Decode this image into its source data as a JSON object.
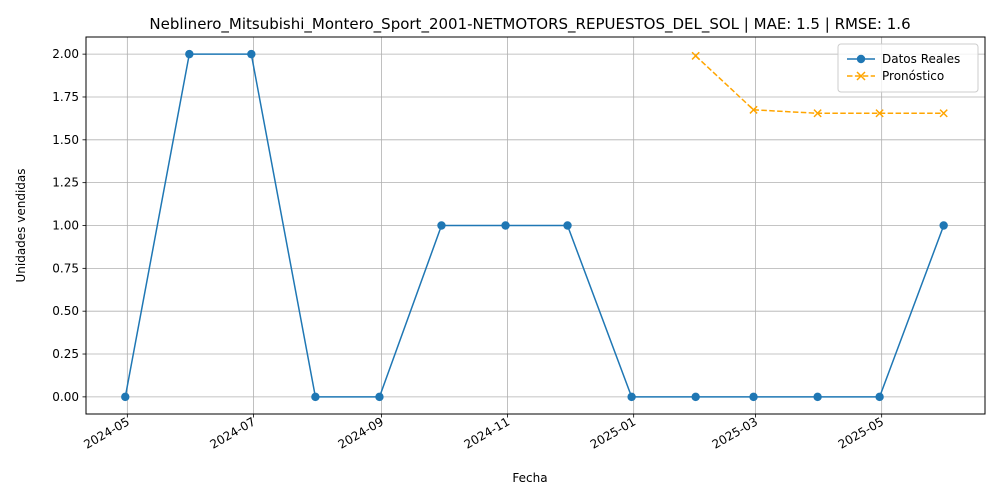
{
  "chart_data": {
    "type": "line",
    "title": "Neblinero_Mitsubishi_Montero_Sport_2001-NETMOTORS_REPUESTOS_DEL_SOL | MAE: 1.5 | RMSE: 1.6",
    "xlabel": "Fecha",
    "ylabel": "Unidades vendidas",
    "xlim": [
      "2024-04-11",
      "2025-06-20"
    ],
    "ylim": [
      -0.1,
      2.1
    ],
    "x_ticks": [
      "2024-05",
      "2024-07",
      "2024-09",
      "2024-11",
      "2025-01",
      "2025-03",
      "2025-05"
    ],
    "y_ticks": [
      "0.00",
      "0.25",
      "0.50",
      "0.75",
      "1.00",
      "1.25",
      "1.50",
      "1.75",
      "2.00"
    ],
    "grid": true,
    "legend_position": "top-right",
    "series": [
      {
        "name": "Datos Reales",
        "color": "#1f77b4",
        "style": "solid",
        "marker": "circle",
        "x": [
          "2024-04-30",
          "2024-05-31",
          "2024-06-30",
          "2024-07-31",
          "2024-08-31",
          "2024-09-30",
          "2024-10-31",
          "2024-11-30",
          "2024-12-31",
          "2025-01-31",
          "2025-02-28",
          "2025-03-31",
          "2025-04-30",
          "2025-05-31"
        ],
        "values": [
          0,
          2,
          2,
          0,
          0,
          1,
          1,
          1,
          0,
          0,
          0,
          0,
          0,
          1
        ]
      },
      {
        "name": "Pronóstico",
        "color": "#ffa500",
        "style": "dashed",
        "marker": "x",
        "x": [
          "2025-01-31",
          "2025-02-28",
          "2025-03-31",
          "2025-04-30",
          "2025-05-31"
        ],
        "values": [
          1.99,
          1.675,
          1.655,
          1.655,
          1.655
        ]
      }
    ]
  }
}
